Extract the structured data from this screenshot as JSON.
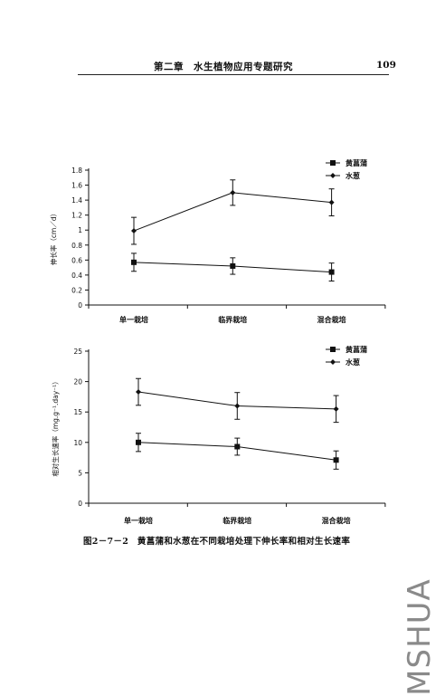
{
  "header": {
    "title": "第二章　水生植物应用专题研究",
    "page_number": "109"
  },
  "chart_data": [
    {
      "type": "line",
      "title": "",
      "xlabel": "",
      "ylabel": "伸长率（cm／d）",
      "categories": [
        "单一栽培",
        "临界栽培",
        "混合栽培"
      ],
      "ylim": [
        0,
        1.8
      ],
      "yticks": [
        "0",
        "0.2",
        "0.4",
        "0.6",
        "0.8",
        "1",
        "1.2",
        "1.4",
        "1.6",
        "1.8"
      ],
      "legend_position": "top-right",
      "series": [
        {
          "name": "黄菖蒲",
          "marker": "square",
          "values": [
            0.57,
            0.52,
            0.44
          ],
          "errors": [
            0.12,
            0.11,
            0.12
          ]
        },
        {
          "name": "水葱",
          "marker": "diamond",
          "values": [
            0.99,
            1.5,
            1.37
          ],
          "errors": [
            0.18,
            0.17,
            0.18
          ]
        }
      ]
    },
    {
      "type": "line",
      "title": "",
      "xlabel": "",
      "ylabel": "相对生长速率（mg.g⁻¹.day⁻¹）",
      "categories": [
        "单一栽培",
        "临界栽培",
        "混合栽培"
      ],
      "ylim": [
        0,
        25
      ],
      "yticks": [
        "0",
        "5",
        "10",
        "15",
        "20",
        "25"
      ],
      "legend_position": "top-right",
      "series": [
        {
          "name": "黄菖蒲",
          "marker": "square",
          "values": [
            10.0,
            9.3,
            7.1
          ],
          "errors": [
            1.5,
            1.4,
            1.5
          ]
        },
        {
          "name": "水葱",
          "marker": "diamond",
          "values": [
            18.3,
            16.0,
            15.5
          ],
          "errors": [
            2.2,
            2.2,
            2.2
          ]
        }
      ]
    }
  ],
  "caption": "图2－7－2　黄菖蒲和水葱在不同栽培处理下伸长率和相对生长速率",
  "watermark": "MSHUA"
}
